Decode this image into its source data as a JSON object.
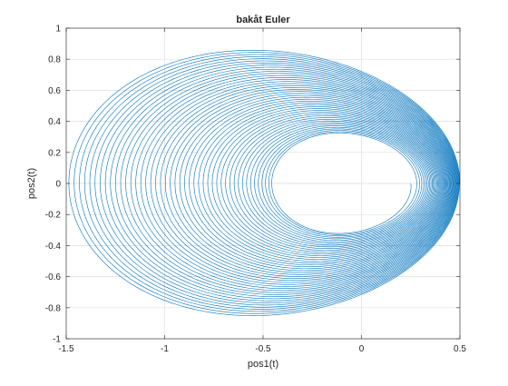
{
  "chart_data": {
    "type": "line",
    "title": "bakåt Euler",
    "xlabel": "pos1(t)",
    "ylabel": "pos2(t)",
    "xlim": [
      -1.5,
      0.5
    ],
    "ylim": [
      -1,
      1
    ],
    "xticks": [
      -1.5,
      -1,
      -0.5,
      0,
      0.5
    ],
    "xtick_labels": [
      "-1.5",
      "-1",
      "-0.5",
      "0",
      "0.5"
    ],
    "yticks": [
      -1,
      -0.8,
      -0.6,
      -0.4,
      -0.2,
      0,
      0.2,
      0.4,
      0.6,
      0.8,
      1
    ],
    "ytick_labels": [
      "-1",
      "-0.8",
      "-0.6",
      "-0.4",
      "-0.2",
      "0",
      "0.2",
      "0.4",
      "0.6",
      "0.8",
      "1"
    ],
    "grid": true,
    "line_color": "#0072bd",
    "series": [
      {
        "kind": "spiral",
        "outer_orbit": {
          "x_min": -1.5,
          "x_max": 0.5,
          "y_max": 0.86
        },
        "inner_orbit": {
          "x_min": -0.45,
          "x_max": 0.25,
          "y_max": 0.32
        },
        "turns": 45
      }
    ]
  }
}
